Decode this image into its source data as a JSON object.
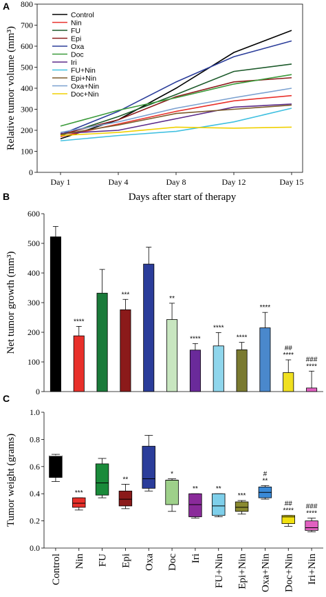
{
  "chart_data": [
    {
      "panel": "A",
      "type": "line",
      "xlabel": "Days after start of therapy",
      "ylabel": "Relative tumor volume  (mm³)",
      "categories": [
        "Day 1",
        "Day 4",
        "Day 8",
        "Day 12",
        "Day 15"
      ],
      "ylim": [
        0,
        800
      ],
      "yticks": [
        0,
        100,
        200,
        300,
        400,
        500,
        600,
        700,
        800
      ],
      "legend_position": "top-left",
      "series": [
        {
          "name": "Control",
          "color": "#000000",
          "values": [
            160,
            250,
            400,
            570,
            675
          ]
        },
        {
          "name": "Nin",
          "color": "#e8302a",
          "values": [
            170,
            230,
            290,
            340,
            365
          ]
        },
        {
          "name": "FU",
          "color": "#1c5a2a",
          "values": [
            175,
            265,
            370,
            480,
            515
          ]
        },
        {
          "name": "Epi",
          "color": "#8b1a1a",
          "values": [
            180,
            250,
            360,
            430,
            450
          ]
        },
        {
          "name": "Oxa",
          "color": "#2b3d9a",
          "values": [
            180,
            290,
            430,
            550,
            625
          ]
        },
        {
          "name": "Doc",
          "color": "#3a9a3a",
          "values": [
            220,
            295,
            355,
            420,
            465
          ]
        },
        {
          "name": "Iri",
          "color": "#5b2a8a",
          "values": [
            185,
            200,
            255,
            310,
            325
          ]
        },
        {
          "name": "FU+Nin",
          "color": "#40c0e0",
          "values": [
            150,
            175,
            195,
            240,
            305
          ]
        },
        {
          "name": "Epi+Nin",
          "color": "#7a5a2a",
          "values": [
            180,
            225,
            280,
            300,
            320
          ]
        },
        {
          "name": "Oxa+Nin",
          "color": "#7aa0d0",
          "values": [
            190,
            240,
            305,
            355,
            400
          ]
        },
        {
          "name": "Doc+Nin",
          "color": "#f0d000",
          "values": [
            175,
            190,
            215,
            210,
            215
          ]
        }
      ]
    },
    {
      "panel": "B",
      "type": "bar",
      "ylabel": "Net tumor growth (mm³)",
      "ylim": [
        0,
        600
      ],
      "yticks": [
        0,
        100,
        200,
        300,
        400,
        500,
        600
      ],
      "categories": [
        "Control",
        "Nin",
        "FU",
        "Epi",
        "Oxa",
        "Doc",
        "Iri",
        "FU+Nin",
        "Epi+Nin",
        "Oxa+Nin",
        "Doc+Nin",
        "Iri+Nin"
      ],
      "values": [
        522,
        188,
        332,
        276,
        430,
        243,
        140,
        154,
        141,
        215,
        64,
        12
      ],
      "errors": [
        35,
        32,
        80,
        35,
        57,
        55,
        22,
        45,
        25,
        52,
        43,
        57
      ],
      "colors": [
        "#000000",
        "#e8302a",
        "#1a7a3a",
        "#8b1a1a",
        "#2b3d9a",
        "#c8e6c0",
        "#6a2a9a",
        "#8fd6ec",
        "#7a7a30",
        "#4a88cc",
        "#f0e020",
        "#e060c0"
      ],
      "significance": [
        "",
        "****",
        "",
        "***",
        "",
        "**",
        "****",
        "****",
        "****",
        "****",
        "##\n****",
        "###\n****"
      ]
    },
    {
      "panel": "C",
      "type": "box",
      "ylabel": "Tumor weight (grams)",
      "ylim": [
        0.0,
        1.0
      ],
      "yticks": [
        "0.0",
        "0.2",
        "0.4",
        "0.6",
        "0.8",
        "1.0"
      ],
      "categories": [
        "Control",
        "Nin",
        "FU",
        "Epi",
        "Oxa",
        "Doc",
        "Iri",
        "FU+Nin",
        "Epi+Nin",
        "Oxa+Nin",
        "Doc+Nin",
        "Iri+Nin"
      ],
      "colors": [
        "#000000",
        "#e8302a",
        "#1a8a3a",
        "#8b1a1a",
        "#2b3d9a",
        "#9ed08a",
        "#8a2a9a",
        "#7ecfea",
        "#8a8a30",
        "#3a8ad8",
        "#f0e010",
        "#e060c0"
      ],
      "box_stats": [
        {
          "min": 0.49,
          "q1": 0.52,
          "median": 0.68,
          "q3": 0.68,
          "max": 0.69
        },
        {
          "min": 0.28,
          "q1": 0.3,
          "median": 0.33,
          "q3": 0.37,
          "max": 0.37
        },
        {
          "min": 0.37,
          "q1": 0.39,
          "median": 0.48,
          "q3": 0.62,
          "max": 0.66
        },
        {
          "min": 0.29,
          "q1": 0.31,
          "median": 0.36,
          "q3": 0.42,
          "max": 0.47
        },
        {
          "min": 0.42,
          "q1": 0.44,
          "median": 0.51,
          "q3": 0.75,
          "max": 0.83
        },
        {
          "min": 0.27,
          "q1": 0.32,
          "median": 0.5,
          "q3": 0.5,
          "max": 0.51
        },
        {
          "min": 0.22,
          "q1": 0.23,
          "median": 0.32,
          "q3": 0.4,
          "max": 0.4
        },
        {
          "min": 0.23,
          "q1": 0.24,
          "median": 0.31,
          "q3": 0.4,
          "max": 0.4
        },
        {
          "min": 0.25,
          "q1": 0.27,
          "median": 0.3,
          "q3": 0.34,
          "max": 0.35
        },
        {
          "min": 0.36,
          "q1": 0.37,
          "median": 0.41,
          "q3": 0.45,
          "max": 0.46
        },
        {
          "min": 0.16,
          "q1": 0.18,
          "median": 0.23,
          "q3": 0.24,
          "max": 0.24
        },
        {
          "min": 0.12,
          "q1": 0.13,
          "median": 0.15,
          "q3": 0.2,
          "max": 0.22
        }
      ],
      "significance": [
        "",
        "***",
        "",
        "**",
        "",
        "*",
        "**",
        "**",
        "***",
        "#\n**",
        "##\n****",
        "###\n****"
      ]
    }
  ]
}
